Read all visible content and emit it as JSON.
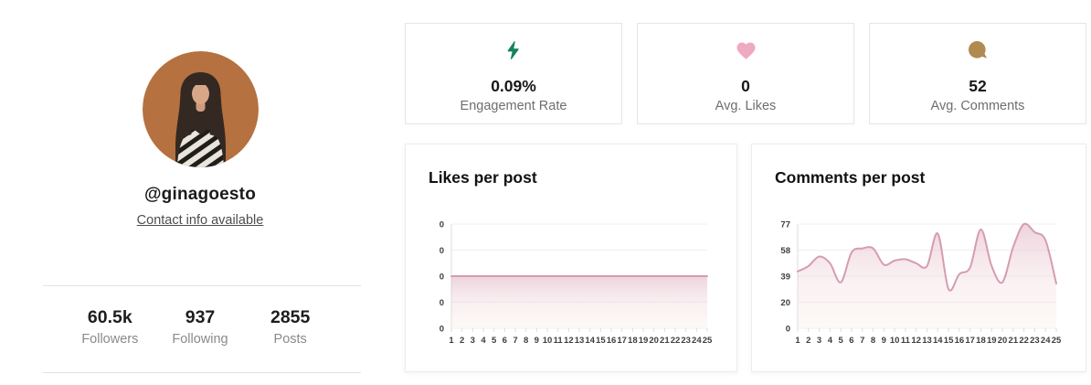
{
  "profile": {
    "username": "@ginagoesto",
    "contact_link": "Contact info available",
    "avatar": {
      "name": "profile-photo",
      "wall_color": "#b5713f",
      "hair_color": "#34282275",
      "note": "woman with long dark hair in zebra-print top against terracotta wall"
    },
    "stats": [
      {
        "value": "60.5k",
        "label": "Followers"
      },
      {
        "value": "937",
        "label": "Following"
      },
      {
        "value": "2855",
        "label": "Posts"
      }
    ]
  },
  "summary_cards": [
    {
      "icon": "lightning-icon",
      "icon_color": "#15835c",
      "value": "0.09%",
      "label": "Engagement Rate"
    },
    {
      "icon": "heart-icon",
      "icon_color": "#efa9c2",
      "value": "0",
      "label": "Avg. Likes"
    },
    {
      "icon": "comment-icon",
      "icon_color": "#b08a50",
      "value": "52",
      "label": "Avg. Comments"
    }
  ],
  "chart_data": [
    {
      "type": "area",
      "title": "Likes per post",
      "x": [
        1,
        2,
        3,
        4,
        5,
        6,
        7,
        8,
        9,
        10,
        11,
        12,
        13,
        14,
        15,
        16,
        17,
        18,
        19,
        20,
        21,
        22,
        23,
        24,
        25
      ],
      "values": [
        0,
        0,
        0,
        0,
        0,
        0,
        0,
        0,
        0,
        0,
        0,
        0,
        0,
        0,
        0,
        0,
        0,
        0,
        0,
        0,
        0,
        0,
        0,
        0,
        0
      ],
      "ylim": [
        -2,
        2
      ],
      "ytick_labels": [
        "0",
        "0",
        "0",
        "0",
        "0"
      ],
      "xlabel": "",
      "ylabel": "",
      "grid": true,
      "legend": "none",
      "line_color": "#d69cb1",
      "fill_top": "rgba(214,152,173,0.42)",
      "fill_mid": "rgba(236,208,214,0.30)",
      "fill_bottom": "rgba(250,239,229,0.32)"
    },
    {
      "type": "area",
      "title": "Comments per post",
      "x": [
        1,
        2,
        3,
        4,
        5,
        6,
        7,
        8,
        9,
        10,
        11,
        12,
        13,
        14,
        15,
        16,
        17,
        18,
        19,
        20,
        21,
        22,
        23,
        24,
        25
      ],
      "values": [
        42,
        46,
        53,
        48,
        34,
        56,
        59,
        59,
        47,
        50,
        51,
        48,
        46,
        70,
        29,
        40,
        45,
        73,
        46,
        34,
        60,
        77,
        71,
        65,
        33
      ],
      "ylim": [
        0,
        77
      ],
      "ytick_labels": [
        "77",
        "58",
        "39",
        "20",
        "0"
      ],
      "xlabel": "",
      "ylabel": "",
      "grid": true,
      "legend": "none",
      "line_color": "#d69cb1",
      "fill_top": "rgba(214,152,173,0.42)",
      "fill_mid": "rgba(236,208,214,0.30)",
      "fill_bottom": "rgba(250,239,229,0.32)"
    }
  ]
}
